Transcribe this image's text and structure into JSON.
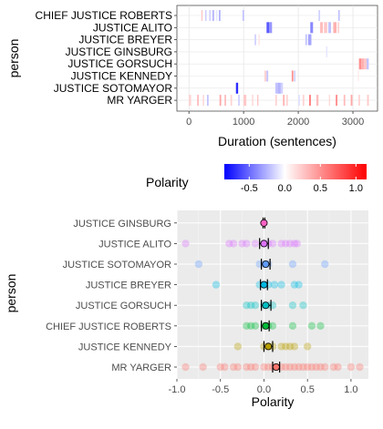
{
  "chart_data": [
    {
      "type": "heatmap",
      "xlabel": "Duration (sentences)",
      "ylabel": "person",
      "xlim": [
        -220,
        3450
      ],
      "x_ticks": [
        0,
        1000,
        2000,
        3000
      ],
      "categories": [
        "CHIEF JUSTICE ROBERTS",
        "JUSTICE ALITO",
        "JUSTICE BREYER",
        "JUSTICE GINSBURG",
        "JUSTICE GORSUCH",
        "JUSTICE KENNEDY",
        "JUSTICE SOTOMAYOR",
        "MR YARGER"
      ],
      "segments": [
        {
          "person": "CHIEF JUSTICE ROBERTS",
          "start": 230,
          "end": 245,
          "polarity": 0.3
        },
        {
          "person": "CHIEF JUSTICE ROBERTS",
          "start": 300,
          "end": 320,
          "polarity": -0.2
        },
        {
          "person": "CHIEF JUSTICE ROBERTS",
          "start": 370,
          "end": 400,
          "polarity": -0.15
        },
        {
          "person": "CHIEF JUSTICE ROBERTS",
          "start": 430,
          "end": 460,
          "polarity": -0.25
        },
        {
          "person": "CHIEF JUSTICE ROBERTS",
          "start": 500,
          "end": 520,
          "polarity": -0.1
        },
        {
          "person": "CHIEF JUSTICE ROBERTS",
          "start": 550,
          "end": 575,
          "polarity": -0.3
        },
        {
          "person": "CHIEF JUSTICE ROBERTS",
          "start": 980,
          "end": 1010,
          "polarity": -0.2
        },
        {
          "person": "CHIEF JUSTICE ROBERTS",
          "start": 2370,
          "end": 2400,
          "polarity": -0.15
        },
        {
          "person": "CHIEF JUSTICE ROBERTS",
          "start": 2730,
          "end": 2760,
          "polarity": -0.2
        },
        {
          "person": "JUSTICE ALITO",
          "start": 1420,
          "end": 1470,
          "polarity": -0.55
        },
        {
          "person": "JUSTICE ALITO",
          "start": 1470,
          "end": 1520,
          "polarity": -0.35
        },
        {
          "person": "JUSTICE ALITO",
          "start": 2220,
          "end": 2270,
          "polarity": -0.4
        },
        {
          "person": "JUSTICE ALITO",
          "start": 2400,
          "end": 2450,
          "polarity": 0.3
        },
        {
          "person": "JUSTICE ALITO",
          "start": 2470,
          "end": 2530,
          "polarity": 0.25
        },
        {
          "person": "JUSTICE ALITO",
          "start": 2550,
          "end": 2600,
          "polarity": -0.2
        },
        {
          "person": "JUSTICE ALITO",
          "start": 2640,
          "end": 2700,
          "polarity": 0.35
        },
        {
          "person": "JUSTICE ALITO",
          "start": 2720,
          "end": 2750,
          "polarity": 0.2
        },
        {
          "person": "JUSTICE BREYER",
          "start": 1200,
          "end": 1230,
          "polarity": -0.15
        },
        {
          "person": "JUSTICE BREYER",
          "start": 1270,
          "end": 1300,
          "polarity": 0.1
        },
        {
          "person": "JUSTICE BREYER",
          "start": 2130,
          "end": 2160,
          "polarity": -0.2
        },
        {
          "person": "JUSTICE BREYER",
          "start": 2180,
          "end": 2240,
          "polarity": -0.3
        },
        {
          "person": "JUSTICE GINSBURG",
          "start": 2510,
          "end": 2530,
          "polarity": -0.1
        },
        {
          "person": "JUSTICE GORSUCH",
          "start": 3110,
          "end": 3150,
          "polarity": 0.5
        },
        {
          "person": "JUSTICE GORSUCH",
          "start": 3150,
          "end": 3200,
          "polarity": 0.35
        },
        {
          "person": "JUSTICE GORSUCH",
          "start": 3200,
          "end": 3250,
          "polarity": 0.25
        },
        {
          "person": "JUSTICE GORSUCH",
          "start": 3250,
          "end": 3290,
          "polarity": -0.2
        },
        {
          "person": "JUSTICE KENNEDY",
          "start": 1380,
          "end": 1420,
          "polarity": 0.2
        },
        {
          "person": "JUSTICE KENNEDY",
          "start": 1420,
          "end": 1450,
          "polarity": -0.2
        },
        {
          "person": "JUSTICE KENNEDY",
          "start": 1880,
          "end": 1910,
          "polarity": 0.5
        },
        {
          "person": "JUSTICE KENNEDY",
          "start": 1920,
          "end": 1950,
          "polarity": -0.15
        },
        {
          "person": "JUSTICE KENNEDY",
          "start": 3090,
          "end": 3110,
          "polarity": 0.1
        },
        {
          "person": "JUSTICE SOTOMAYOR",
          "start": 860,
          "end": 900,
          "polarity": -0.7
        },
        {
          "person": "JUSTICE SOTOMAYOR",
          "start": 1580,
          "end": 1620,
          "polarity": -0.2
        },
        {
          "person": "JUSTICE SOTOMAYOR",
          "start": 1620,
          "end": 1680,
          "polarity": -0.25
        },
        {
          "person": "JUSTICE SOTOMAYOR",
          "start": 1680,
          "end": 1720,
          "polarity": -0.15
        },
        {
          "person": "MR YARGER",
          "start": 0,
          "end": 40,
          "polarity": 0.2
        },
        {
          "person": "MR YARGER",
          "start": 150,
          "end": 180,
          "polarity": 0.3
        },
        {
          "person": "MR YARGER",
          "start": 250,
          "end": 280,
          "polarity": 0.15
        },
        {
          "person": "MR YARGER",
          "start": 330,
          "end": 360,
          "polarity": -0.2
        },
        {
          "person": "MR YARGER",
          "start": 560,
          "end": 590,
          "polarity": 0.4
        },
        {
          "person": "MR YARGER",
          "start": 650,
          "end": 680,
          "polarity": 0.3
        },
        {
          "person": "MR YARGER",
          "start": 760,
          "end": 790,
          "polarity": 0.2
        },
        {
          "person": "MR YARGER",
          "start": 900,
          "end": 930,
          "polarity": -0.15
        },
        {
          "person": "MR YARGER",
          "start": 1000,
          "end": 1050,
          "polarity": 0.25
        },
        {
          "person": "MR YARGER",
          "start": 1150,
          "end": 1180,
          "polarity": 0.15
        },
        {
          "person": "MR YARGER",
          "start": 1250,
          "end": 1270,
          "polarity": 0.3
        },
        {
          "person": "MR YARGER",
          "start": 1580,
          "end": 1610,
          "polarity": 0.2
        },
        {
          "person": "MR YARGER",
          "start": 1720,
          "end": 1750,
          "polarity": 0.35
        },
        {
          "person": "MR YARGER",
          "start": 1780,
          "end": 1810,
          "polarity": 0.2
        },
        {
          "person": "MR YARGER",
          "start": 2000,
          "end": 2030,
          "polarity": -0.1
        },
        {
          "person": "MR YARGER",
          "start": 2080,
          "end": 2110,
          "polarity": 0.2
        },
        {
          "person": "MR YARGER",
          "start": 2200,
          "end": 2230,
          "polarity": 0.6
        },
        {
          "person": "MR YARGER",
          "start": 2330,
          "end": 2370,
          "polarity": 0.3
        },
        {
          "person": "MR YARGER",
          "start": 2560,
          "end": 2580,
          "polarity": 0.2
        },
        {
          "person": "MR YARGER",
          "start": 2690,
          "end": 2710,
          "polarity": 0.8
        },
        {
          "person": "MR YARGER",
          "start": 2830,
          "end": 2860,
          "polarity": 0.3
        },
        {
          "person": "MR YARGER",
          "start": 2960,
          "end": 2990,
          "polarity": 0.4
        },
        {
          "person": "MR YARGER",
          "start": 3100,
          "end": 3130,
          "polarity": 0.2
        },
        {
          "person": "MR YARGER",
          "start": 3260,
          "end": 3290,
          "polarity": 0.25
        }
      ]
    },
    {
      "type": "scatter",
      "xlabel": "Polarity",
      "ylabel": "person",
      "xlim": [
        -1.0,
        1.2
      ],
      "x_ticks": [
        -1.0,
        -0.5,
        0.0,
        0.5,
        1.0
      ],
      "x_tick_labels": [
        "-1.0",
        "-0.5",
        "0.0",
        "0.5",
        "1.0"
      ],
      "categories": [
        "MR YARGER",
        "JUSTICE KENNEDY",
        "CHIEF JUSTICE ROBERTS",
        "JUSTICE GORSUCH",
        "JUSTICE BREYER",
        "JUSTICE SOTOMAYOR",
        "JUSTICE ALITO",
        "JUSTICE GINSBURG"
      ],
      "series": [
        {
          "category": "JUSTICE GINSBURG",
          "color": "#FF61C3",
          "mean": 0.0,
          "ci": [
            -0.01,
            0.01
          ],
          "points": [
            0.0
          ]
        },
        {
          "category": "JUSTICE ALITO",
          "color": "#DB72FB",
          "mean": 0.0,
          "ci": [
            -0.05,
            0.05
          ],
          "points": [
            -0.9,
            -0.4,
            -0.35,
            -0.25,
            -0.2,
            -0.1,
            0.0,
            0.05,
            0.1,
            0.2,
            0.25,
            0.3,
            0.35,
            0.38
          ]
        },
        {
          "category": "JUSTICE SOTOMAYOR",
          "color": "#619CFF",
          "mean": 0.02,
          "ci": [
            -0.03,
            0.07
          ],
          "points": [
            -0.75,
            -0.05,
            0.0,
            0.05,
            0.33,
            0.7
          ]
        },
        {
          "category": "JUSTICE BREYER",
          "color": "#00B9E3",
          "mean": 0.0,
          "ci": [
            -0.04,
            0.04
          ],
          "points": [
            -0.55,
            -0.05,
            0.0,
            0.05,
            0.12,
            0.2,
            0.35,
            0.4
          ]
        },
        {
          "category": "JUSTICE GORSUCH",
          "color": "#00BFC4",
          "mean": 0.02,
          "ci": [
            -0.03,
            0.08
          ],
          "points": [
            -0.2,
            -0.15,
            -0.1,
            0.0,
            0.05,
            0.1,
            0.33,
            0.45
          ]
        },
        {
          "category": "CHIEF JUSTICE ROBERTS",
          "color": "#00BA38",
          "mean": 0.02,
          "ci": [
            -0.03,
            0.06
          ],
          "points": [
            -0.2,
            -0.15,
            -0.1,
            0.0,
            0.05,
            0.1,
            0.33,
            0.55,
            0.65
          ]
        },
        {
          "category": "JUSTICE KENNEDY",
          "color": "#B79F00",
          "mean": 0.05,
          "ci": [
            0.0,
            0.1
          ],
          "points": [
            -0.3,
            0.0,
            0.05,
            0.1,
            0.2,
            0.25,
            0.3,
            0.35,
            0.5
          ]
        },
        {
          "category": "MR YARGER",
          "color": "#F8766D",
          "mean": 0.14,
          "ci": [
            0.1,
            0.18
          ],
          "points": [
            -0.9,
            -0.7,
            -0.5,
            -0.45,
            -0.35,
            -0.3,
            -0.2,
            -0.15,
            -0.1,
            0.0,
            0.05,
            0.1,
            0.15,
            0.2,
            0.25,
            0.3,
            0.35,
            0.4,
            0.45,
            0.5,
            0.55,
            0.6,
            0.65,
            0.7,
            0.8,
            0.85,
            1.0,
            1.1
          ]
        }
      ]
    }
  ],
  "legend": {
    "title": "Polarity",
    "ticks": [
      -0.5,
      0.0,
      0.5,
      1.0
    ],
    "tick_labels": [
      "-0.5",
      "0.0",
      "0.5",
      "1.0"
    ],
    "min": -0.85,
    "max": 1.15,
    "low_color": "#0000FF",
    "mid_color": "#FFFFFF",
    "high_color": "#FF0000"
  }
}
